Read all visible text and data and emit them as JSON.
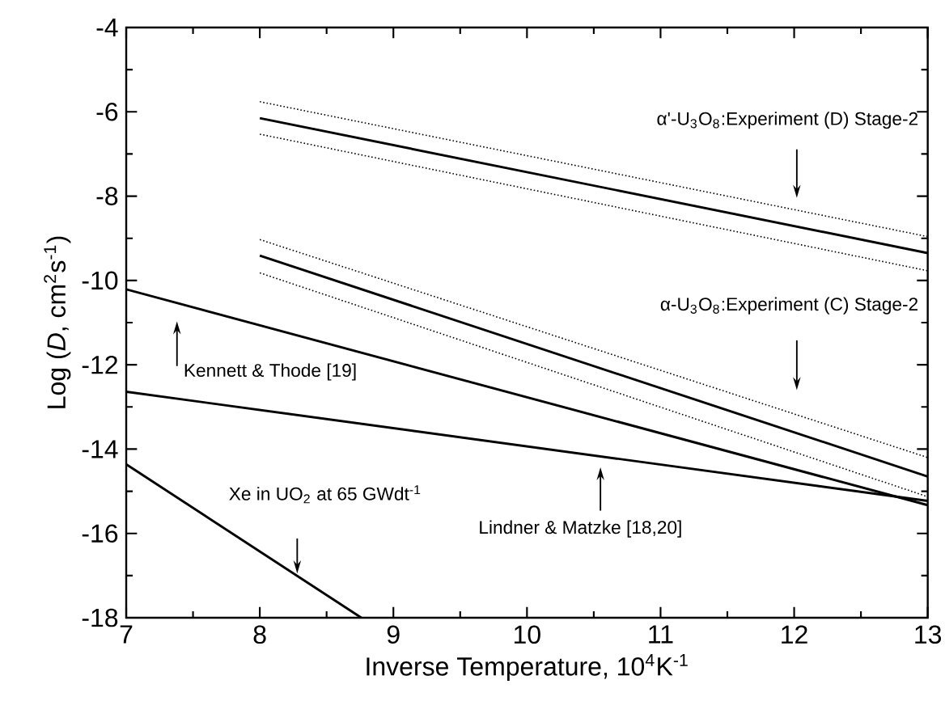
{
  "chart_data": {
    "type": "line",
    "xlabel": "Inverse Temperature, 10$^{4}$K$^{-1}$",
    "ylabel": "Log (*D*, cm$^{2}$s$^{-1}$)",
    "xlim": [
      7,
      13
    ],
    "ylim": [
      -18,
      -4
    ],
    "xticks": [
      7,
      8,
      9,
      10,
      11,
      12,
      13
    ],
    "yticks": [
      -18,
      -16,
      -14,
      -12,
      -10,
      -8,
      -6,
      -4
    ],
    "grid": false,
    "marker": "none",
    "series": [
      {
        "color": "#000000",
        "line_style": "dotted",
        "x": [
          8,
          13
        ],
        "values": [
          -5.76,
          -8.96
        ]
      },
      {
        "color": "#000000",
        "line_style": "solid",
        "x": [
          8,
          13
        ],
        "values": [
          -6.15,
          -9.35
        ]
      },
      {
        "color": "#000000",
        "line_style": "dotted",
        "x": [
          8,
          13
        ],
        "values": [
          -6.53,
          -9.77
        ]
      },
      {
        "color": "#000000",
        "line_style": "dotted",
        "x": [
          8,
          13
        ],
        "values": [
          -9.03,
          -14.2
        ]
      },
      {
        "color": "#000000",
        "line_style": "solid",
        "x": [
          8,
          13
        ],
        "values": [
          -9.41,
          -14.65
        ]
      },
      {
        "color": "#000000",
        "line_style": "dotted",
        "x": [
          8,
          13
        ],
        "values": [
          -9.82,
          -15.13
        ]
      },
      {
        "color": "#000000",
        "line_style": "solid",
        "x": [
          7,
          13
        ],
        "values": [
          -10.21,
          -15.33
        ]
      },
      {
        "color": "#000000",
        "line_style": "solid",
        "x": [
          7,
          13
        ],
        "values": [
          -12.64,
          -15.23
        ]
      },
      {
        "color": "#000000",
        "line_style": "solid",
        "x": [
          7,
          8.76
        ],
        "values": [
          -14.36,
          -18
        ]
      }
    ],
    "annotations": [
      "α'-U$_{3}$O$_{8}$:Experiment (D) Stage-2",
      "α-U$_{3}$O$_{8}$:Experiment (C) Stage-2",
      "Kennett & Thode [19]",
      "Lindner & Matzke [18,20]",
      "Xe in UO$_{2}$ at 65 GWdt$^{-1}$"
    ]
  }
}
